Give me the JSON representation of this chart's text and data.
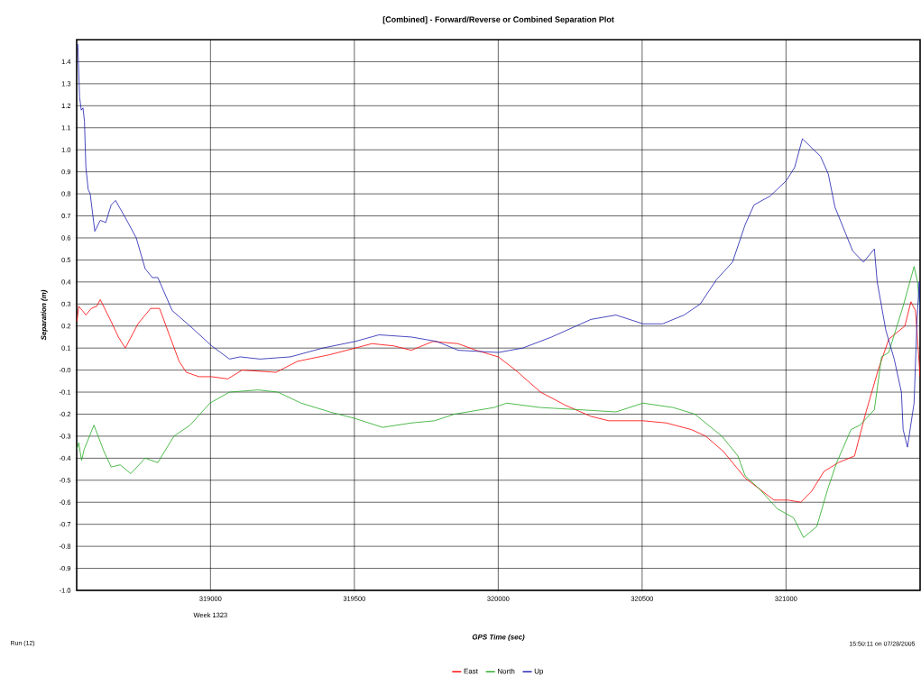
{
  "chart_data": {
    "type": "line",
    "title": "[Combined] - Forward/Reverse or Combined Separation Plot",
    "xlabel": "GPS Time (sec)",
    "ylabel": "Separation (m)",
    "annotations": [
      "Week 1323",
      "Run (12)",
      "15:50:11 on 07/28/2005"
    ],
    "xlim": [
      318535,
      321466
    ],
    "xticks": [
      319000,
      319500,
      320000,
      320500,
      321000
    ],
    "ylim": [
      -1.0,
      1.5
    ],
    "yticks": [
      {
        "value": -1,
        "label": "-1.0"
      },
      -0.9,
      -0.8,
      -0.7,
      -0.6,
      -0.5,
      -0.4,
      -0.3,
      -0.2,
      -0.1,
      {
        "value": 0,
        "label": "-0.0"
      },
      0.1,
      0.2,
      0.3,
      0.4,
      0.5,
      0.6,
      0.7,
      0.8,
      0.9,
      {
        "value": 1,
        "label": "1.0"
      },
      1.1,
      1.2,
      1.3,
      1.4
    ],
    "grid": true,
    "legend": "bottom",
    "series": [
      {
        "name": "East",
        "color": "#ff0000",
        "x": [
          318536,
          318542,
          318555,
          318567,
          318586,
          318605,
          318617,
          318655,
          318680,
          318704,
          318748,
          318792,
          318823,
          318854,
          318891,
          318916,
          318960,
          319004,
          319060,
          319110,
          319228,
          319303,
          319415,
          319503,
          319561,
          319636,
          319698,
          319773,
          319860,
          319923,
          320000,
          320060,
          320147,
          320234,
          320322,
          320384,
          320503,
          320584,
          320671,
          320721,
          320783,
          320858,
          320958,
          321007,
          321051,
          321089,
          321132,
          321182,
          321238,
          321276,
          321320,
          321357,
          321413,
          321434,
          321450,
          321466
        ],
        "values": [
          0.22,
          0.29,
          0.27,
          0.25,
          0.28,
          0.29,
          0.32,
          0.22,
          0.15,
          0.1,
          0.21,
          0.28,
          0.28,
          0.17,
          0.04,
          -0.01,
          -0.03,
          -0.03,
          -0.04,
          0.0,
          -0.01,
          0.04,
          0.07,
          0.1,
          0.12,
          0.11,
          0.09,
          0.13,
          0.12,
          0.09,
          0.06,
          0.0,
          -0.1,
          -0.16,
          -0.21,
          -0.23,
          -0.23,
          -0.24,
          -0.27,
          -0.3,
          -0.37,
          -0.49,
          -0.59,
          -0.59,
          -0.6,
          -0.55,
          -0.46,
          -0.42,
          -0.39,
          -0.2,
          0.0,
          0.14,
          0.2,
          0.31,
          0.27,
          -0.03
        ]
      },
      {
        "name": "North",
        "color": "#22aa22",
        "x": [
          318536,
          318542,
          318552,
          318561,
          318595,
          318630,
          318655,
          318686,
          318723,
          318773,
          318817,
          318873,
          318929,
          318998,
          319066,
          319166,
          319234,
          319315,
          319415,
          319503,
          319598,
          319698,
          319779,
          319848,
          319985,
          320029,
          320147,
          320284,
          320409,
          320503,
          320608,
          320683,
          320777,
          320833,
          320858,
          320908,
          320970,
          321026,
          321061,
          321107,
          321145,
          321176,
          321226,
          321257,
          321307,
          321332,
          321357,
          321407,
          321445,
          321457,
          321466
        ],
        "values": [
          -0.36,
          -0.33,
          -0.41,
          -0.36,
          -0.25,
          -0.37,
          -0.44,
          -0.43,
          -0.47,
          -0.4,
          -0.42,
          -0.3,
          -0.25,
          -0.15,
          -0.1,
          -0.09,
          -0.1,
          -0.15,
          -0.19,
          -0.22,
          -0.26,
          -0.24,
          -0.23,
          -0.2,
          -0.17,
          -0.15,
          -0.17,
          -0.18,
          -0.19,
          -0.15,
          -0.17,
          -0.2,
          -0.3,
          -0.39,
          -0.48,
          -0.54,
          -0.63,
          -0.67,
          -0.76,
          -0.71,
          -0.54,
          -0.42,
          -0.27,
          -0.25,
          -0.18,
          0.06,
          0.08,
          0.29,
          0.47,
          0.4,
          0.27
        ]
      },
      {
        "name": "Up",
        "color": "#1c1cb0",
        "x": [
          318539,
          318545,
          318551,
          318557,
          318562,
          318567,
          318575,
          318582,
          318598,
          318617,
          318636,
          318655,
          318670,
          318705,
          318742,
          318773,
          318798,
          318817,
          318867,
          318929,
          319004,
          319066,
          319103,
          319172,
          319278,
          319390,
          319503,
          319586,
          319698,
          319786,
          319861,
          320000,
          320085,
          320185,
          320322,
          320409,
          320503,
          320571,
          320646,
          320702,
          320758,
          320814,
          320858,
          320889,
          320945,
          321001,
          321030,
          321057,
          321120,
          321147,
          321170,
          321232,
          321269,
          321307,
          321317,
          321347,
          321376,
          321401,
          321407,
          321422,
          321445,
          321455,
          321463,
          321466
        ],
        "values": [
          1.48,
          1.24,
          1.18,
          1.19,
          1.13,
          0.92,
          0.82,
          0.8,
          0.63,
          0.68,
          0.67,
          0.75,
          0.77,
          0.69,
          0.6,
          0.46,
          0.42,
          0.42,
          0.27,
          0.2,
          0.11,
          0.05,
          0.06,
          0.05,
          0.06,
          0.1,
          0.13,
          0.16,
          0.15,
          0.13,
          0.09,
          0.08,
          0.1,
          0.15,
          0.23,
          0.25,
          0.21,
          0.21,
          0.25,
          0.3,
          0.41,
          0.49,
          0.66,
          0.75,
          0.79,
          0.86,
          0.92,
          1.05,
          0.97,
          0.89,
          0.74,
          0.54,
          0.49,
          0.55,
          0.4,
          0.18,
          0.05,
          -0.1,
          -0.27,
          -0.35,
          -0.15,
          0.22,
          0.4,
          0.25
        ]
      }
    ]
  }
}
